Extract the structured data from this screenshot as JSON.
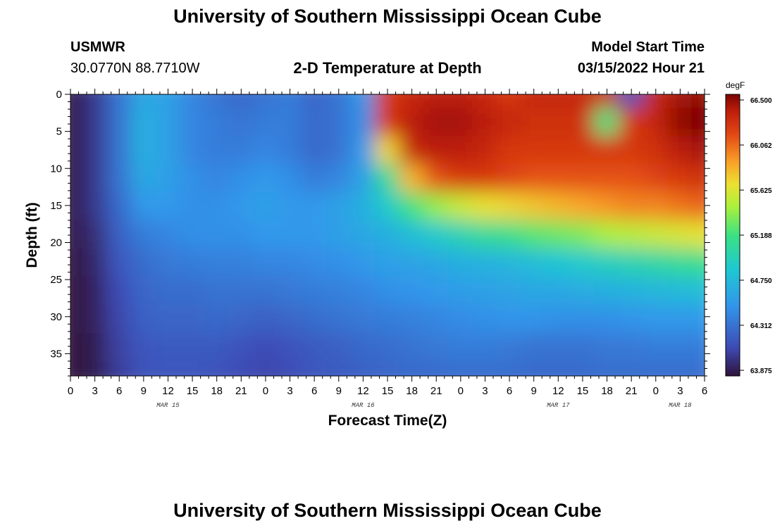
{
  "header": {
    "title": "University of Southern Mississippi Ocean Cube",
    "station": "USMWR",
    "coords": "30.0770N  88.7710W",
    "subtitle": "2-D Temperature at Depth",
    "model_label": "Model Start Time",
    "model_time": "03/15/2022 Hour 21"
  },
  "footer": {
    "title": "University of Southern Mississippi Ocean Cube"
  },
  "chart_data": {
    "type": "heatmap",
    "xlabel": "Forecast Time(Z)",
    "ylabel": "Depth (ft)",
    "units": "degF",
    "x_range": [
      0,
      78
    ],
    "y_range": [
      0,
      38
    ],
    "y_ticks": [
      "0",
      "5",
      "10",
      "15",
      "20",
      "25",
      "30",
      "35"
    ],
    "y_tick_values": [
      0,
      5,
      10,
      15,
      20,
      25,
      30,
      35
    ],
    "x_tick_labels": [
      "0",
      "3",
      "6",
      "9",
      "12",
      "15",
      "18",
      "21",
      "0",
      "3",
      "6",
      "9",
      "12",
      "15",
      "18",
      "21",
      "0",
      "3",
      "6",
      "9",
      "12",
      "15",
      "18",
      "21",
      "0",
      "3",
      "6"
    ],
    "date_labels": [
      {
        "label": "MAR 15",
        "hour": 12
      },
      {
        "label": "MAR 16",
        "hour": 36
      },
      {
        "label": "MAR 17",
        "hour": 60
      },
      {
        "label": "MAR 18",
        "hour": 75
      }
    ],
    "colorbar_ticks": [
      "66.500",
      "66.062",
      "65.625",
      "65.188",
      "64.750",
      "64.312",
      "63.875"
    ],
    "color_range": [
      63.875,
      66.5
    ],
    "grid": [
      [
        63.9,
        64.05,
        64.35,
        64.65,
        64.6,
        64.45,
        64.35,
        64.3,
        64.35,
        64.4,
        64.28,
        64.35,
        64.55,
        66.2,
        66.3,
        66.35,
        66.35,
        66.3,
        66.2,
        66.3,
        66.3,
        66.3,
        66.25,
        64.2,
        66.3,
        66.4,
        66.45
      ],
      [
        63.9,
        64.05,
        64.35,
        64.7,
        64.6,
        64.45,
        64.4,
        64.35,
        64.4,
        64.4,
        64.3,
        64.35,
        64.5,
        66.2,
        66.35,
        66.4,
        66.4,
        66.35,
        66.3,
        66.25,
        66.25,
        66.25,
        65.2,
        66.2,
        66.3,
        66.45,
        66.5
      ],
      [
        63.9,
        64.05,
        64.35,
        64.7,
        64.6,
        64.45,
        64.4,
        64.4,
        64.45,
        64.4,
        64.3,
        64.35,
        64.55,
        65.7,
        66.3,
        66.35,
        66.35,
        66.3,
        66.2,
        66.2,
        66.2,
        66.2,
        66.2,
        66.2,
        66.25,
        66.35,
        66.4
      ],
      [
        63.9,
        64.05,
        64.35,
        64.65,
        64.6,
        64.5,
        64.45,
        64.5,
        64.55,
        64.5,
        64.4,
        64.45,
        64.6,
        65.1,
        65.8,
        66.1,
        66.2,
        66.2,
        66.15,
        66.1,
        66.1,
        66.1,
        66.1,
        66.1,
        66.15,
        66.2,
        66.25
      ],
      [
        63.9,
        64.05,
        64.3,
        64.55,
        64.55,
        64.5,
        64.5,
        64.55,
        64.6,
        64.55,
        64.55,
        64.6,
        64.7,
        64.9,
        65.2,
        65.4,
        65.55,
        65.65,
        65.7,
        65.75,
        65.8,
        65.85,
        65.9,
        65.95,
        65.95,
        66.0,
        66.05
      ],
      [
        63.9,
        64.0,
        64.25,
        64.4,
        64.45,
        64.5,
        64.5,
        64.5,
        64.55,
        64.55,
        64.55,
        64.6,
        64.65,
        64.7,
        64.8,
        64.9,
        65.0,
        65.1,
        65.15,
        65.25,
        65.3,
        65.35,
        65.45,
        65.5,
        65.55,
        65.6,
        65.65
      ],
      [
        63.88,
        63.98,
        64.2,
        64.32,
        64.38,
        64.4,
        64.42,
        64.42,
        64.45,
        64.45,
        64.48,
        64.5,
        64.55,
        64.6,
        64.62,
        64.65,
        64.7,
        64.72,
        64.75,
        64.8,
        64.85,
        64.9,
        64.95,
        65.0,
        65.05,
        65.1,
        65.15
      ],
      [
        63.88,
        63.95,
        64.15,
        64.28,
        64.32,
        64.32,
        64.35,
        64.35,
        64.35,
        64.38,
        64.4,
        64.42,
        64.45,
        64.5,
        64.52,
        64.55,
        64.58,
        64.6,
        64.62,
        64.65,
        64.65,
        64.68,
        64.7,
        64.72,
        64.75,
        64.78,
        64.8
      ],
      [
        63.88,
        63.95,
        64.12,
        64.25,
        64.28,
        64.28,
        64.3,
        64.28,
        64.25,
        64.28,
        64.32,
        64.35,
        64.38,
        64.4,
        64.42,
        64.45,
        64.48,
        64.5,
        64.52,
        64.52,
        64.5,
        64.5,
        64.5,
        64.52,
        64.55,
        64.55,
        64.55
      ],
      [
        63.88,
        63.92,
        64.1,
        64.2,
        64.22,
        64.22,
        64.22,
        64.18,
        64.15,
        64.18,
        64.22,
        64.25,
        64.3,
        64.32,
        64.35,
        64.38,
        64.4,
        64.4,
        64.38,
        64.35,
        64.35,
        64.35,
        64.38,
        64.38,
        64.4,
        64.4,
        64.4
      ],
      [
        63.88,
        63.92,
        64.08,
        64.18,
        64.2,
        64.2,
        64.18,
        64.15,
        64.12,
        64.15,
        64.2,
        64.22,
        64.25,
        64.28,
        64.3,
        64.3,
        64.32,
        64.32,
        64.32,
        64.3,
        64.3,
        64.3,
        64.32,
        64.32,
        64.32,
        64.32,
        64.32
      ]
    ]
  }
}
